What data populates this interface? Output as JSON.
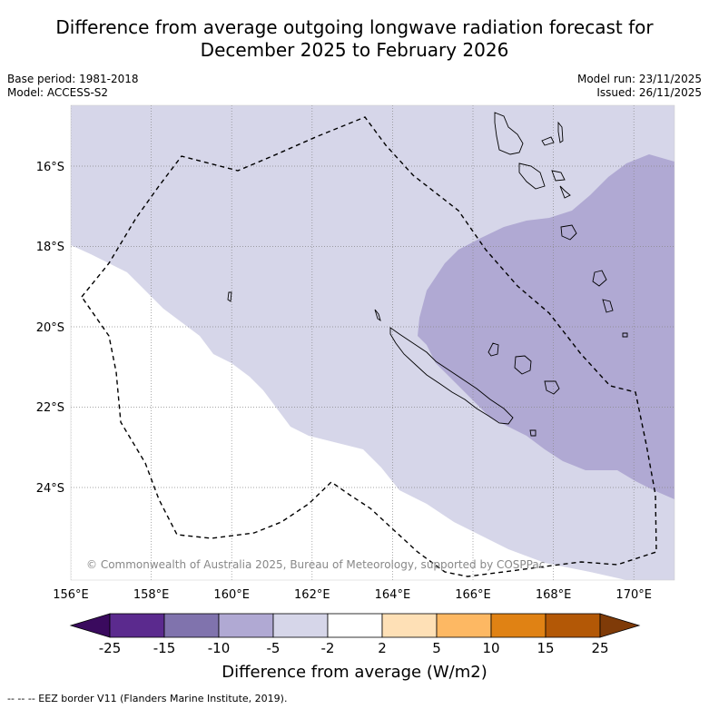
{
  "header": {
    "title_line1": "Difference from average outgoing longwave radiation forecast for",
    "title_line2": "December 2025 to February 2026",
    "base_period": "Base period: 1981-2018",
    "model": "Model: ACCESS-S2",
    "model_run": "Model run: 23/11/2025",
    "issued": "Issued: 26/11/2025"
  },
  "map": {
    "lat_labels": [
      "16°S",
      "18°S",
      "20°S",
      "22°S",
      "24°S"
    ],
    "lon_labels": [
      "156°E",
      "158°E",
      "160°E",
      "162°E",
      "164°E",
      "166°E",
      "168°E",
      "170°E"
    ],
    "copyright": "© Commonwealth of Australia 2025, Bureau of Meteorology, supported by COSPPac",
    "colors": {
      "light_purple": "#d6d6e9",
      "mid_purple": "#b0a9d3",
      "land_outline": "#000000",
      "grid": "#888888"
    }
  },
  "colorbar": {
    "ticks": [
      "-25",
      "-15",
      "-10",
      "-5",
      "-2",
      "2",
      "5",
      "10",
      "15",
      "25"
    ],
    "colors": [
      "#3a0a5e",
      "#5b2a8e",
      "#8073ad",
      "#b0a9d3",
      "#d6d6e9",
      "#ffffff",
      "#fee0b6",
      "#fdb863",
      "#e08214",
      "#b35806",
      "#7f3b08"
    ],
    "label": "Difference from average (W/m2)"
  },
  "footer": {
    "legend": "--  --  -- EEZ border V11 (Flanders Marine Institute, 2019)."
  }
}
